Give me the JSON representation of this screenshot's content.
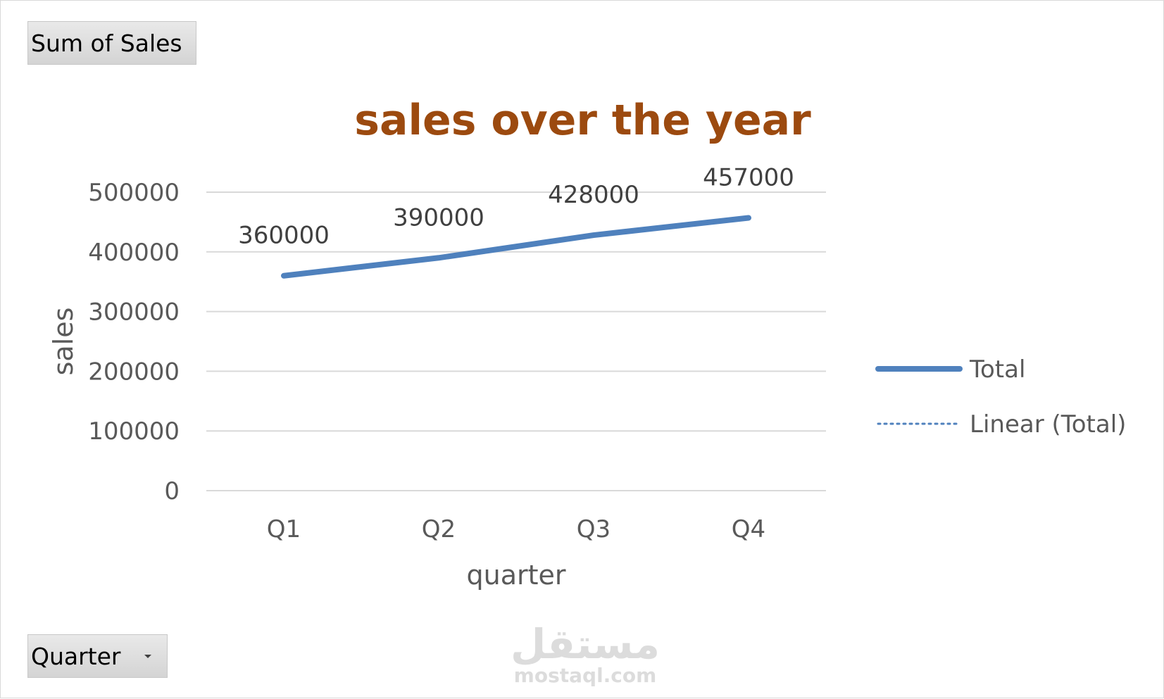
{
  "pivot_fields": {
    "values_label": "Sum of Sales",
    "axis_label": "Quarter"
  },
  "colors": {
    "title": "#9c4a0f",
    "series": "#4f81bd",
    "gridline": "#d9d9d9",
    "axis_text": "#595959"
  },
  "watermark": {
    "arabic": "مستقل",
    "latin": "mostaql.com"
  },
  "chart_data": {
    "type": "line",
    "title": "sales over the year",
    "xlabel": "quarter",
    "ylabel": "sales",
    "categories": [
      "Q1",
      "Q2",
      "Q3",
      "Q4"
    ],
    "ylim": [
      0,
      500000
    ],
    "yticks": [
      "0",
      "100000",
      "200000",
      "300000",
      "400000",
      "500000"
    ],
    "grid": true,
    "legend_position": "right",
    "series": [
      {
        "name": "Total",
        "values": [
          360000,
          390000,
          428000,
          457000
        ],
        "data_labels": [
          "360000",
          "390000",
          "428000",
          "457000"
        ],
        "style": "solid"
      },
      {
        "name": "Linear (Total)",
        "values": [
          358900,
          392400,
          425900,
          459400
        ],
        "style": "dotted"
      }
    ]
  }
}
